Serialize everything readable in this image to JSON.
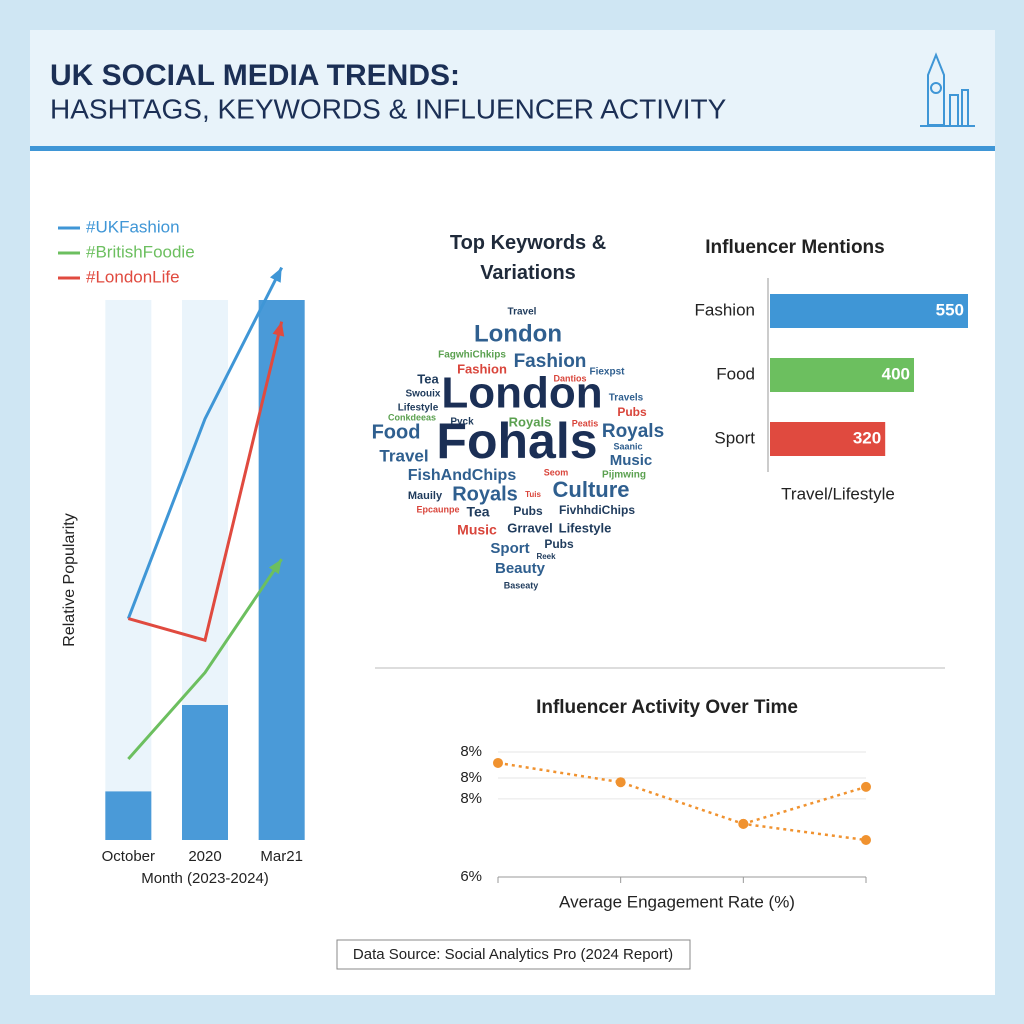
{
  "header": {
    "title": "UK SOCIAL MEDIA TRENDS:",
    "subtitle": "HASHTAGS, KEYWORDS & INFLUENCER ACTIVITY"
  },
  "chart_data": [
    {
      "type": "bar",
      "x_label": "Month (2023-2024)",
      "y_label": "Relative Popularity",
      "categories": [
        "October",
        "2020",
        "Mar21"
      ],
      "values": [
        9,
        25,
        100
      ],
      "color": "#4a9ad8",
      "ylim": [
        0,
        110
      ],
      "series": [
        {
          "name": "#UKFashion",
          "color": "#3f96d6",
          "values": [
            41,
            78,
            106
          ]
        },
        {
          "name": "#BritishFoodie",
          "color": "#6cbf5f",
          "values": [
            15,
            31,
            52
          ]
        },
        {
          "name": "#LondonLife",
          "color": "#e04a3f",
          "values": [
            41,
            37,
            96
          ]
        }
      ]
    },
    {
      "type": "wordcloud",
      "title": "Top Keywords & Variations",
      "words": [
        {
          "text": "Travel",
          "color": "#1f3b5c"
        },
        {
          "text": "London",
          "color": "#2f5f8f"
        },
        {
          "text": "FagwhiChkips",
          "color": "#5aa04f"
        },
        {
          "text": "Fashion",
          "color": "#2f5f8f"
        },
        {
          "text": "Fashion",
          "color": "#d9453b"
        },
        {
          "text": "Fiexpst",
          "color": "#2f5f8f"
        },
        {
          "text": "Tea",
          "color": "#1f3b5c"
        },
        {
          "text": "Dantios",
          "color": "#d9453b"
        },
        {
          "text": "Swouix",
          "color": "#1f3b5c"
        },
        {
          "text": "Travels",
          "color": "#2f5f8f"
        },
        {
          "text": "Lifestyle",
          "color": "#1f3b5c"
        },
        {
          "text": "Pubs",
          "color": "#d9453b"
        },
        {
          "text": "Conkdeeas",
          "color": "#5aa04f"
        },
        {
          "text": "London",
          "color": "#1b2f55"
        },
        {
          "text": "Food",
          "color": "#2f5f8f"
        },
        {
          "text": "Pyck",
          "color": "#1f3b5c"
        },
        {
          "text": "Royals",
          "color": "#5aa04f"
        },
        {
          "text": "Peatis",
          "color": "#d9453b"
        },
        {
          "text": "Royals",
          "color": "#2f5f8f"
        },
        {
          "text": "Fohals",
          "color": "#1b2f55"
        },
        {
          "text": "Saanic",
          "color": "#2f5f8f"
        },
        {
          "text": "Travel",
          "color": "#2f5f8f"
        },
        {
          "text": "Music",
          "color": "#2f5f8f"
        },
        {
          "text": "Seom",
          "color": "#d9453b"
        },
        {
          "text": "Pijmwing",
          "color": "#5aa04f"
        },
        {
          "text": "FishAndChips",
          "color": "#2f5f8f"
        },
        {
          "text": "Mauily",
          "color": "#1f3b5c"
        },
        {
          "text": "Royals",
          "color": "#2f5f8f"
        },
        {
          "text": "Tuis",
          "color": "#d9453b"
        },
        {
          "text": "Culture",
          "color": "#2f5f8f"
        },
        {
          "text": "Epcaunpe",
          "color": "#d9453b"
        },
        {
          "text": "Tea",
          "color": "#1f3b5c"
        },
        {
          "text": "Pubs",
          "color": "#1f3b5c"
        },
        {
          "text": "FivhhdiChips",
          "color": "#1f3b5c"
        },
        {
          "text": "Music",
          "color": "#d9453b"
        },
        {
          "text": "Grravel",
          "color": "#1f3b5c"
        },
        {
          "text": "Lifestyle",
          "color": "#1f3b5c"
        },
        {
          "text": "Sport",
          "color": "#2f5f8f"
        },
        {
          "text": "Pubs",
          "color": "#1f3b5c"
        },
        {
          "text": "Reek",
          "color": "#1f3b5c"
        },
        {
          "text": "Beauty",
          "color": "#2f5f8f"
        },
        {
          "text": "Baseaty",
          "color": "#1f3b5c"
        }
      ]
    },
    {
      "type": "hbar",
      "title": "Influencer Mentions",
      "x_label": "Travel/Lifestyle",
      "categories": [
        "Fashion",
        "Food",
        "Sport"
      ],
      "values": [
        550,
        400,
        320
      ],
      "colors": [
        "#3f96d6",
        "#6cbf5f",
        "#e04a3f"
      ],
      "xlim": [
        0,
        550
      ]
    },
    {
      "type": "line",
      "title": "Influencer Activity Over Time",
      "x_label": "Average Engagement Rate (%)",
      "categories": [
        null,
        null,
        null,
        null
      ],
      "series": [
        {
          "color": "#f0922f",
          "values": [
            8.19,
            7.82,
            7.02,
            6.71
          ]
        },
        {
          "color": "#f0922f",
          "values": [
            null,
            null,
            7.02,
            7.73
          ]
        }
      ],
      "ylim": [
        6,
        8.4
      ],
      "yticks": [
        {
          "value": 8.4,
          "label": "8%"
        },
        {
          "value": 7.9,
          "label": "8%"
        },
        {
          "value": 7.5,
          "label": "8%"
        },
        {
          "value": 6,
          "label": "6%"
        }
      ],
      "grid": true
    }
  ],
  "footer": {
    "source": "Data Source: Social Analytics Pro (2024 Report)"
  }
}
